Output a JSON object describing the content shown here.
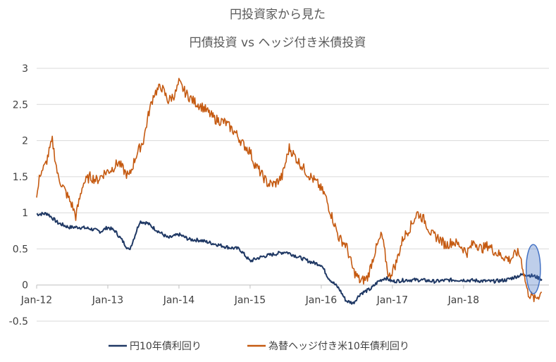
{
  "chart_data": {
    "type": "line",
    "title_line1": "円投資家から見た",
    "title_line2": "円債投資 vs ヘッジ付き米債投資",
    "xlabel": "",
    "ylabel": "",
    "ylim": [
      -0.5,
      3
    ],
    "yticks": [
      "3",
      "2.5",
      "2",
      "1.5",
      "1",
      "0.5",
      "0",
      "-0.5"
    ],
    "ytick_values": [
      3,
      2.5,
      2,
      1.5,
      1,
      0.5,
      0,
      -0.5
    ],
    "xticks": [
      "Jan-12",
      "Jan-13",
      "Jan-14",
      "Jan-15",
      "Jan-16",
      "Jan-17",
      "Jan-18"
    ],
    "xtick_values": [
      2012,
      2013,
      2014,
      2015,
      2016,
      2017,
      2018
    ],
    "xlim": [
      2012,
      2019.2
    ],
    "grid": true,
    "legend_position": "bottom",
    "highlight_ellipse": {
      "x_center": 2018.98,
      "y_center": 0.22,
      "x_radius": 0.1,
      "y_radius": 0.34,
      "color": "#4472c4"
    },
    "series": [
      {
        "name": "円10年債利回り",
        "color": "#1f3864",
        "x": [
          2012.0,
          2012.15,
          2012.3,
          2012.45,
          2012.6,
          2012.75,
          2012.9,
          2013.0,
          2013.1,
          2013.2,
          2013.3,
          2013.35,
          2013.45,
          2013.55,
          2013.7,
          2013.85,
          2014.0,
          2014.15,
          2014.3,
          2014.5,
          2014.7,
          2014.85,
          2015.0,
          2015.1,
          2015.2,
          2015.4,
          2015.5,
          2015.7,
          2015.85,
          2016.0,
          2016.1,
          2016.25,
          2016.35,
          2016.45,
          2016.55,
          2016.7,
          2016.8,
          2016.9,
          2017.0,
          2017.2,
          2017.4,
          2017.6,
          2017.8,
          2018.0,
          2018.2,
          2018.4,
          2018.6,
          2018.75,
          2018.85,
          2019.0,
          2019.1
        ],
        "values": [
          0.98,
          0.99,
          0.86,
          0.8,
          0.8,
          0.78,
          0.74,
          0.8,
          0.75,
          0.62,
          0.48,
          0.6,
          0.88,
          0.86,
          0.75,
          0.65,
          0.7,
          0.63,
          0.62,
          0.57,
          0.52,
          0.5,
          0.33,
          0.37,
          0.4,
          0.44,
          0.46,
          0.38,
          0.32,
          0.28,
          0.1,
          -0.05,
          -0.22,
          -0.25,
          -0.12,
          -0.05,
          0.05,
          0.1,
          0.05,
          0.07,
          0.07,
          0.05,
          0.07,
          0.07,
          0.06,
          0.05,
          0.07,
          0.12,
          0.15,
          0.12,
          0.08
        ]
      },
      {
        "name": "為替ヘッジ付き米10年債利回り",
        "color": "#c55a11",
        "x": [
          2012.0,
          2012.05,
          2012.12,
          2012.22,
          2012.3,
          2012.4,
          2012.5,
          2012.55,
          2012.65,
          2012.75,
          2012.85,
          2012.95,
          2013.05,
          2013.15,
          2013.25,
          2013.3,
          2013.4,
          2013.5,
          2013.58,
          2013.65,
          2013.75,
          2013.85,
          2013.95,
          2014.0,
          2014.1,
          2014.2,
          2014.35,
          2014.5,
          2014.65,
          2014.8,
          2014.9,
          2015.0,
          2015.05,
          2015.15,
          2015.25,
          2015.35,
          2015.45,
          2015.55,
          2015.65,
          2015.8,
          2015.95,
          2016.05,
          2016.15,
          2016.25,
          2016.35,
          2016.45,
          2016.55,
          2016.65,
          2016.75,
          2016.85,
          2016.95,
          2017.05,
          2017.15,
          2017.25,
          2017.35,
          2017.45,
          2017.55,
          2017.65,
          2017.75,
          2017.85,
          2017.95,
          2018.05,
          2018.15,
          2018.25,
          2018.35,
          2018.45,
          2018.55,
          2018.65,
          2018.75,
          2018.8,
          2018.9,
          2019.0,
          2019.1
        ],
        "values": [
          1.2,
          1.55,
          1.65,
          2.0,
          1.5,
          1.3,
          1.1,
          0.95,
          1.4,
          1.5,
          1.45,
          1.55,
          1.6,
          1.7,
          1.55,
          1.5,
          1.8,
          2.0,
          2.4,
          2.65,
          2.75,
          2.55,
          2.65,
          2.8,
          2.65,
          2.55,
          2.45,
          2.3,
          2.25,
          2.1,
          1.95,
          1.85,
          1.7,
          1.55,
          1.4,
          1.4,
          1.5,
          1.9,
          1.75,
          1.55,
          1.4,
          1.25,
          0.95,
          0.65,
          0.55,
          0.2,
          0.05,
          0.1,
          0.45,
          0.7,
          0.1,
          0.3,
          0.65,
          0.8,
          1.0,
          0.9,
          0.7,
          0.65,
          0.55,
          0.6,
          0.55,
          0.45,
          0.6,
          0.5,
          0.55,
          0.45,
          0.4,
          0.35,
          0.45,
          0.4,
          -0.1,
          -0.2,
          -0.1
        ]
      }
    ]
  }
}
